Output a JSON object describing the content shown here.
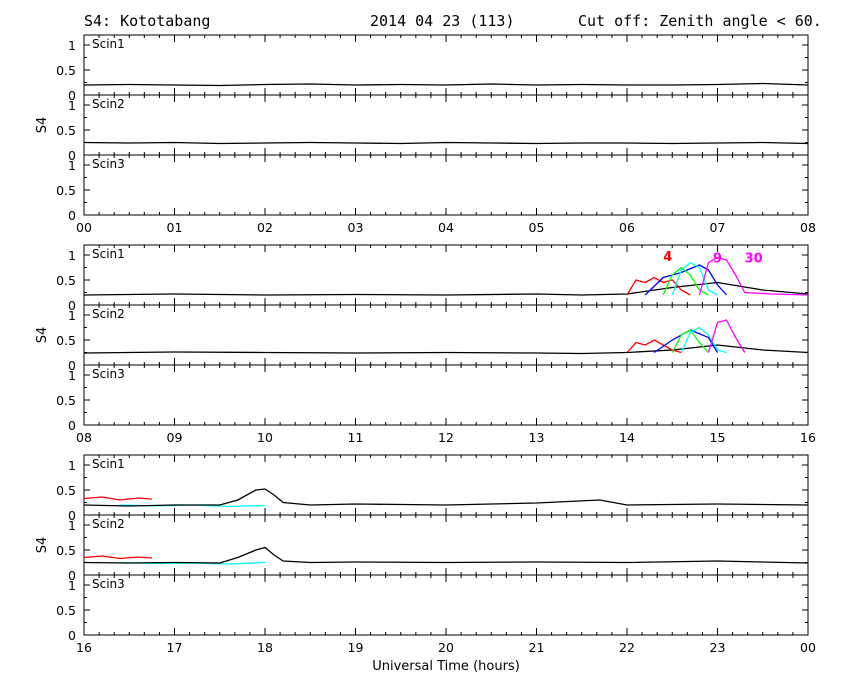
{
  "header": {
    "station": "S4: Kototabang",
    "date": "2014 04 23 (113)",
    "cutoff": "Cut off: Zenith angle < 60."
  },
  "chart_data": {
    "type": "line",
    "xlabel": "Universal Time (hours)",
    "ylabel": "S4",
    "ylim": [
      0,
      1.2
    ],
    "yticks": [
      "0",
      "0.5",
      "1"
    ],
    "grid": false,
    "blocks": [
      {
        "xticks": [
          "00",
          "01",
          "02",
          "03",
          "04",
          "05",
          "06",
          "07",
          "08"
        ],
        "xrange": [
          0,
          8
        ],
        "panels": [
          {
            "label": "Scin1",
            "series": [
              {
                "color": "#000000",
                "x": [
                  0,
                  0.5,
                  1,
                  1.5,
                  2,
                  2.5,
                  3,
                  3.5,
                  4,
                  4.5,
                  5,
                  5.5,
                  6,
                  6.5,
                  7,
                  7.5,
                  8
                ],
                "y": [
                  0.2,
                  0.21,
                  0.2,
                  0.19,
                  0.21,
                  0.22,
                  0.2,
                  0.21,
                  0.2,
                  0.22,
                  0.2,
                  0.21,
                  0.2,
                  0.2,
                  0.21,
                  0.23,
                  0.2
                ]
              }
            ]
          },
          {
            "label": "Scin2",
            "series": [
              {
                "color": "#000000",
                "x": [
                  0,
                  0.5,
                  1,
                  1.5,
                  2,
                  2.5,
                  3,
                  3.5,
                  4,
                  4.5,
                  5,
                  5.5,
                  6,
                  6.5,
                  7,
                  7.5,
                  8
                ],
                "y": [
                  0.25,
                  0.24,
                  0.25,
                  0.23,
                  0.24,
                  0.25,
                  0.24,
                  0.23,
                  0.25,
                  0.24,
                  0.23,
                  0.24,
                  0.24,
                  0.23,
                  0.24,
                  0.25,
                  0.23
                ]
              }
            ]
          },
          {
            "label": "Scin3",
            "series": []
          }
        ]
      },
      {
        "xticks": [
          "08",
          "09",
          "10",
          "11",
          "12",
          "13",
          "14",
          "15",
          "16"
        ],
        "xrange": [
          8,
          16
        ],
        "annotations": [
          {
            "text": "4",
            "x": 14.4,
            "y": 0.88,
            "color": "#ff0000"
          },
          {
            "text": "9",
            "x": 14.95,
            "y": 0.85,
            "color": "#ff00ff"
          },
          {
            "text": "30",
            "x": 15.3,
            "y": 0.85,
            "color": "#ff00ff"
          }
        ],
        "panels": [
          {
            "label": "Scin1",
            "series": [
              {
                "color": "#000000",
                "x": [
                  8,
                  9,
                  10,
                  11,
                  12,
                  13,
                  13.5,
                  14,
                  14.5,
                  15,
                  15.5,
                  16
                ],
                "y": [
                  0.2,
                  0.22,
                  0.2,
                  0.21,
                  0.2,
                  0.22,
                  0.2,
                  0.22,
                  0.35,
                  0.45,
                  0.3,
                  0.22
                ]
              },
              {
                "color": "#ff0000",
                "x": [
                  14,
                  14.1,
                  14.2,
                  14.3,
                  14.4,
                  14.5,
                  14.6,
                  14.7
                ],
                "y": [
                  0.2,
                  0.5,
                  0.45,
                  0.55,
                  0.45,
                  0.5,
                  0.3,
                  0.2
                ]
              },
              {
                "color": "#0000ff",
                "x": [
                  14.2,
                  14.4,
                  14.6,
                  14.8,
                  14.9,
                  15,
                  15.1
                ],
                "y": [
                  0.2,
                  0.55,
                  0.65,
                  0.8,
                  0.7,
                  0.4,
                  0.2
                ]
              },
              {
                "color": "#00ff00",
                "x": [
                  14.4,
                  14.5,
                  14.6,
                  14.7,
                  14.8,
                  14.9
                ],
                "y": [
                  0.2,
                  0.6,
                  0.75,
                  0.6,
                  0.3,
                  0.2
                ]
              },
              {
                "color": "#00ffff",
                "x": [
                  14.5,
                  14.6,
                  14.7,
                  14.8,
                  14.9,
                  15
                ],
                "y": [
                  0.2,
                  0.7,
                  0.85,
                  0.75,
                  0.3,
                  0.2
                ]
              },
              {
                "color": "#ff00ff",
                "x": [
                  14.8,
                  14.9,
                  15,
                  15.1,
                  15.2,
                  15.3,
                  15.6,
                  16
                ],
                "y": [
                  0.2,
                  0.85,
                  0.95,
                  0.9,
                  0.6,
                  0.25,
                  0.22,
                  0.2
                ]
              }
            ]
          },
          {
            "label": "Scin2",
            "series": [
              {
                "color": "#000000",
                "x": [
                  8,
                  9,
                  10,
                  11,
                  12,
                  13,
                  13.5,
                  14,
                  14.5,
                  15,
                  15.5,
                  16
                ],
                "y": [
                  0.24,
                  0.26,
                  0.25,
                  0.24,
                  0.25,
                  0.24,
                  0.23,
                  0.25,
                  0.3,
                  0.4,
                  0.3,
                  0.25
                ]
              },
              {
                "color": "#ff0000",
                "x": [
                  14,
                  14.1,
                  14.2,
                  14.3,
                  14.4,
                  14.5,
                  14.6
                ],
                "y": [
                  0.25,
                  0.45,
                  0.4,
                  0.5,
                  0.4,
                  0.3,
                  0.25
                ]
              },
              {
                "color": "#0000ff",
                "x": [
                  14.3,
                  14.5,
                  14.7,
                  14.9,
                  15
                ],
                "y": [
                  0.25,
                  0.5,
                  0.7,
                  0.55,
                  0.25
                ]
              },
              {
                "color": "#00ff00",
                "x": [
                  14.5,
                  14.6,
                  14.7,
                  14.8,
                  14.9
                ],
                "y": [
                  0.25,
                  0.6,
                  0.7,
                  0.45,
                  0.25
                ]
              },
              {
                "color": "#00ffff",
                "x": [
                  14.6,
                  14.7,
                  14.8,
                  14.9,
                  15,
                  15.1
                ],
                "y": [
                  0.25,
                  0.65,
                  0.75,
                  0.6,
                  0.3,
                  0.25
                ]
              },
              {
                "color": "#ff00ff",
                "x": [
                  14.9,
                  15,
                  15.1,
                  15.2,
                  15.3
                ],
                "y": [
                  0.25,
                  0.85,
                  0.9,
                  0.55,
                  0.25
                ]
              }
            ]
          },
          {
            "label": "Scin3",
            "series": []
          }
        ]
      },
      {
        "xticks": [
          "16",
          "17",
          "18",
          "19",
          "20",
          "21",
          "22",
          "23",
          "00"
        ],
        "xrange": [
          16,
          24
        ],
        "panels": [
          {
            "label": "Scin1",
            "series": [
              {
                "color": "#ff0000",
                "x": [
                  16,
                  16.2,
                  16.4,
                  16.6,
                  16.75
                ],
                "y": [
                  0.33,
                  0.36,
                  0.3,
                  0.34,
                  0.32
                ]
              },
              {
                "color": "#00ffff",
                "x": [
                  16.4,
                  16.8,
                  17.2,
                  17.6,
                  18
                ],
                "y": [
                  0.2,
                  0.18,
                  0.2,
                  0.17,
                  0.19
                ]
              },
              {
                "color": "#000000",
                "x": [
                  16,
                  16.5,
                  17,
                  17.5,
                  17.7,
                  17.9,
                  18,
                  18.1,
                  18.2,
                  18.5,
                  19,
                  20,
                  21,
                  21.7,
                  22,
                  23,
                  24
                ],
                "y": [
                  0.2,
                  0.18,
                  0.2,
                  0.2,
                  0.3,
                  0.5,
                  0.52,
                  0.4,
                  0.25,
                  0.2,
                  0.22,
                  0.2,
                  0.24,
                  0.3,
                  0.2,
                  0.22,
                  0.2
                ]
              }
            ]
          },
          {
            "label": "Scin2",
            "series": [
              {
                "color": "#ff0000",
                "x": [
                  16,
                  16.2,
                  16.4,
                  16.6,
                  16.75
                ],
                "y": [
                  0.35,
                  0.38,
                  0.33,
                  0.36,
                  0.34
                ]
              },
              {
                "color": "#00ffff",
                "x": [
                  16.4,
                  16.8,
                  17.2,
                  17.6,
                  18
                ],
                "y": [
                  0.25,
                  0.23,
                  0.24,
                  0.22,
                  0.25
                ]
              },
              {
                "color": "#000000",
                "x": [
                  16,
                  16.5,
                  17,
                  17.5,
                  17.7,
                  17.9,
                  18,
                  18.1,
                  18.2,
                  18.5,
                  19,
                  20,
                  21,
                  22,
                  23,
                  24
                ],
                "y": [
                  0.25,
                  0.24,
                  0.25,
                  0.24,
                  0.35,
                  0.5,
                  0.55,
                  0.4,
                  0.28,
                  0.25,
                  0.26,
                  0.25,
                  0.26,
                  0.25,
                  0.28,
                  0.24
                ]
              }
            ]
          },
          {
            "label": "Scin3",
            "series": []
          }
        ]
      }
    ]
  }
}
